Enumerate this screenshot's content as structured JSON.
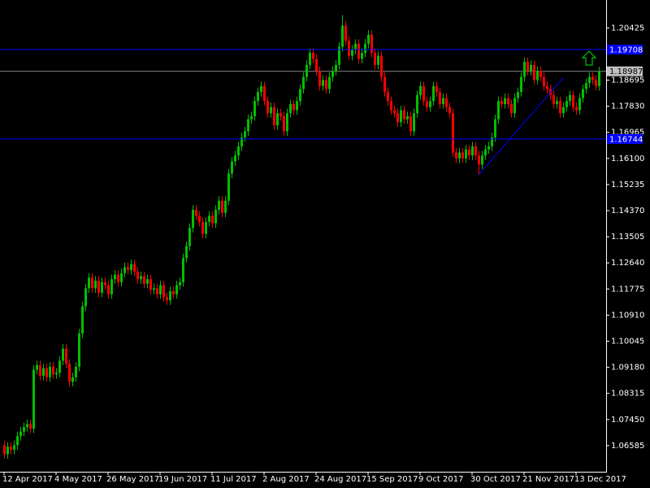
{
  "chart_data": {
    "type": "candlestick",
    "categories": [
      "12 Apr 2017",
      null,
      null,
      null,
      null,
      null,
      null,
      null,
      null,
      null,
      null,
      null,
      null,
      null,
      null,
      null,
      "4 May 2017",
      null,
      null,
      null,
      null,
      null,
      null,
      null,
      null,
      null,
      null,
      null,
      null,
      null,
      null,
      null,
      "26 May 2017",
      null,
      null,
      null,
      null,
      null,
      null,
      null,
      null,
      null,
      null,
      null,
      null,
      null,
      null,
      null,
      "19 Jun 2017",
      null,
      null,
      null,
      null,
      null,
      null,
      null,
      null,
      null,
      null,
      null,
      null,
      null,
      null,
      null,
      "11 Jul 2017",
      null,
      null,
      null,
      null,
      null,
      null,
      null,
      null,
      null,
      null,
      null,
      null,
      null,
      null,
      null,
      "2 Aug 2017",
      null,
      null,
      null,
      null,
      null,
      null,
      null,
      null,
      null,
      null,
      null,
      null,
      null,
      null,
      null,
      "24 Aug 2017",
      null,
      null,
      null,
      null,
      null,
      null,
      null,
      null,
      null,
      null,
      null,
      null,
      null,
      null,
      null,
      "15 Sep 2017",
      null,
      null,
      null,
      null,
      null,
      null,
      null,
      null,
      null,
      null,
      null,
      null,
      null,
      null,
      null,
      "9 Oct 2017",
      null,
      null,
      null,
      null,
      null,
      null,
      null,
      null,
      null,
      null,
      null,
      null,
      null,
      null,
      null,
      "30 Oct 2017",
      null,
      null,
      null,
      null,
      null,
      null,
      null,
      null,
      null,
      null,
      null,
      null,
      null,
      null,
      null,
      "21 Nov 2017",
      null,
      null,
      null,
      null,
      null,
      null,
      null,
      null,
      null,
      null,
      null,
      null,
      null,
      null,
      null,
      "13 Dec 2017",
      null,
      null,
      null,
      null,
      null,
      null,
      null
    ],
    "open": [
      1.066,
      1.063,
      1.0655,
      1.0645,
      1.066,
      1.069,
      1.0705,
      1.072,
      1.073,
      1.0715,
      1.091,
      1.0925,
      1.089,
      1.0915,
      1.0885,
      1.092,
      1.0895,
      1.09,
      1.094,
      1.098,
      1.093,
      1.087,
      1.0885,
      1.092,
      1.103,
      1.112,
      1.118,
      1.1215,
      1.118,
      1.1205,
      1.1165,
      1.12,
      1.119,
      1.116,
      1.121,
      1.1225,
      1.12,
      1.123,
      1.125,
      1.124,
      1.126,
      1.1235,
      1.121,
      1.122,
      1.1195,
      1.121,
      1.1175,
      1.118,
      1.116,
      1.119,
      1.115,
      1.114,
      1.117,
      1.116,
      1.119,
      1.12,
      1.128,
      1.132,
      1.138,
      1.144,
      1.142,
      1.14,
      1.136,
      1.14,
      1.142,
      1.1395,
      1.144,
      1.147,
      1.143,
      1.147,
      1.156,
      1.16,
      1.162,
      1.165,
      1.168,
      1.17,
      1.174,
      1.175,
      1.18,
      1.183,
      1.185,
      1.18,
      1.176,
      1.178,
      1.172,
      1.176,
      1.175,
      1.17,
      1.176,
      1.179,
      1.177,
      1.18,
      1.184,
      1.188,
      1.192,
      1.196,
      1.194,
      1.19,
      1.185,
      1.187,
      1.184,
      1.188,
      1.19,
      1.192,
      1.198,
      1.205,
      1.2,
      1.195,
      1.197,
      1.199,
      1.194,
      1.196,
      1.199,
      1.202,
      1.196,
      1.192,
      1.195,
      1.188,
      1.183,
      1.18,
      1.177,
      1.176,
      1.173,
      1.177,
      1.174,
      1.175,
      1.17,
      1.176,
      1.182,
      1.185,
      1.18,
      1.178,
      1.18,
      1.185,
      1.183,
      1.179,
      1.181,
      1.178,
      1.176,
      1.163,
      1.161,
      1.163,
      1.161,
      1.164,
      1.162,
      1.165,
      1.162,
      1.159,
      1.162,
      1.164,
      1.165,
      1.168,
      1.174,
      1.18,
      1.179,
      1.181,
      1.179,
      1.176,
      1.181,
      1.183,
      1.188,
      1.193,
      1.19,
      1.192,
      1.187,
      1.19,
      1.188,
      1.185,
      1.184,
      1.182,
      1.179,
      1.18,
      1.176,
      1.178,
      1.18,
      1.182,
      1.178,
      1.177,
      1.181,
      1.184,
      1.186,
      1.188,
      1.187,
      1.185
    ],
    "high": [
      1.0675,
      1.067,
      1.067,
      1.0675,
      1.0705,
      1.072,
      1.0735,
      1.0745,
      1.0745,
      1.0925,
      1.094,
      1.094,
      1.093,
      1.093,
      1.0935,
      1.0935,
      1.0915,
      1.0955,
      1.0995,
      1.0995,
      1.0945,
      1.09,
      1.0935,
      1.1045,
      1.1135,
      1.1195,
      1.123,
      1.123,
      1.122,
      1.122,
      1.1215,
      1.1215,
      1.1205,
      1.1225,
      1.124,
      1.124,
      1.1245,
      1.1265,
      1.1265,
      1.1275,
      1.1275,
      1.125,
      1.1235,
      1.1235,
      1.1225,
      1.1225,
      1.1195,
      1.1195,
      1.1205,
      1.1205,
      1.1165,
      1.1185,
      1.1185,
      1.1205,
      1.1215,
      1.1295,
      1.1335,
      1.1395,
      1.1455,
      1.1455,
      1.1435,
      1.1415,
      1.1415,
      1.1435,
      1.1435,
      1.1455,
      1.1485,
      1.1485,
      1.1485,
      1.1575,
      1.1615,
      1.1635,
      1.1665,
      1.1695,
      1.1715,
      1.1755,
      1.1765,
      1.1815,
      1.1845,
      1.1865,
      1.1865,
      1.1815,
      1.1795,
      1.1795,
      1.1775,
      1.1775,
      1.1765,
      1.1775,
      1.1805,
      1.1805,
      1.1815,
      1.1855,
      1.1895,
      1.1935,
      1.1975,
      1.1975,
      1.1955,
      1.1915,
      1.1885,
      1.1885,
      1.1895,
      1.1915,
      1.1935,
      1.1995,
      1.2085,
      1.2065,
      1.2015,
      1.1985,
      1.2005,
      1.2005,
      1.1975,
      1.2005,
      1.2035,
      1.2035,
      1.1975,
      1.1965,
      1.1965,
      1.1895,
      1.1845,
      1.1815,
      1.1785,
      1.1775,
      1.1785,
      1.1785,
      1.1765,
      1.1765,
      1.1775,
      1.1835,
      1.1865,
      1.1865,
      1.1815,
      1.1815,
      1.1865,
      1.1865,
      1.1845,
      1.1825,
      1.1825,
      1.1795,
      1.1775,
      1.1645,
      1.1645,
      1.1645,
      1.1655,
      1.1655,
      1.1665,
      1.1665,
      1.1635,
      1.1635,
      1.1655,
      1.1665,
      1.1695,
      1.1755,
      1.1815,
      1.1815,
      1.1825,
      1.1825,
      1.1805,
      1.1825,
      1.1845,
      1.1895,
      1.1945,
      1.1945,
      1.1935,
      1.1935,
      1.1915,
      1.1915,
      1.1895,
      1.1865,
      1.1855,
      1.1835,
      1.1815,
      1.1815,
      1.1795,
      1.1815,
      1.1835,
      1.1835,
      1.1795,
      1.1825,
      1.1855,
      1.1875,
      1.1895,
      1.1895,
      1.1885,
      1.1914
    ],
    "low": [
      1.0615,
      1.0615,
      1.063,
      1.063,
      1.0645,
      1.0675,
      1.069,
      1.0705,
      1.07,
      1.07,
      1.0895,
      1.0875,
      1.0875,
      1.087,
      1.087,
      1.088,
      1.088,
      1.0885,
      1.0925,
      1.0915,
      1.0855,
      1.0855,
      1.087,
      1.0905,
      1.1015,
      1.1105,
      1.1165,
      1.1165,
      1.1165,
      1.115,
      1.115,
      1.1175,
      1.1145,
      1.1145,
      1.1195,
      1.1185,
      1.1185,
      1.1215,
      1.1225,
      1.1225,
      1.122,
      1.1195,
      1.1195,
      1.118,
      1.118,
      1.116,
      1.116,
      1.1145,
      1.1145,
      1.1135,
      1.1125,
      1.1125,
      1.1145,
      1.1145,
      1.1175,
      1.1185,
      1.1265,
      1.1305,
      1.1365,
      1.1405,
      1.1385,
      1.1345,
      1.1345,
      1.1385,
      1.138,
      1.138,
      1.1425,
      1.1415,
      1.1415,
      1.1455,
      1.1545,
      1.1585,
      1.1605,
      1.1635,
      1.1665,
      1.1685,
      1.1725,
      1.1735,
      1.1785,
      1.1815,
      1.1785,
      1.1745,
      1.1745,
      1.1705,
      1.1705,
      1.1735,
      1.1685,
      1.1685,
      1.1745,
      1.1755,
      1.1755,
      1.1785,
      1.1825,
      1.1865,
      1.1905,
      1.1925,
      1.1885,
      1.1835,
      1.1835,
      1.1825,
      1.1825,
      1.1865,
      1.1885,
      1.1905,
      1.1965,
      1.1985,
      1.1935,
      1.1935,
      1.1955,
      1.1925,
      1.1925,
      1.1945,
      1.1975,
      1.1945,
      1.1905,
      1.1905,
      1.1865,
      1.1815,
      1.1785,
      1.1755,
      1.1745,
      1.1715,
      1.1715,
      1.1725,
      1.1725,
      1.1685,
      1.1685,
      1.1745,
      1.1805,
      1.1785,
      1.1765,
      1.1765,
      1.1785,
      1.1815,
      1.1775,
      1.1775,
      1.1765,
      1.1745,
      1.1615,
      1.1595,
      1.1595,
      1.1595,
      1.1595,
      1.1605,
      1.1605,
      1.1605,
      1.1555,
      1.1575,
      1.1605,
      1.1625,
      1.1635,
      1.1665,
      1.1725,
      1.1775,
      1.1775,
      1.1775,
      1.1745,
      1.1745,
      1.1795,
      1.1815,
      1.1865,
      1.1885,
      1.1885,
      1.1855,
      1.1855,
      1.1865,
      1.1835,
      1.1825,
      1.1805,
      1.1775,
      1.1775,
      1.1745,
      1.1745,
      1.1765,
      1.1785,
      1.1765,
      1.1755,
      1.1755,
      1.1795,
      1.1825,
      1.1845,
      1.1855,
      1.1835,
      1.1835
    ],
    "close": [
      1.063,
      1.0655,
      1.0645,
      1.066,
      1.069,
      1.0705,
      1.072,
      1.073,
      1.0715,
      1.091,
      1.0925,
      1.089,
      1.0915,
      1.0885,
      1.092,
      1.0895,
      1.09,
      1.094,
      1.098,
      1.093,
      1.087,
      1.0885,
      1.092,
      1.103,
      1.112,
      1.118,
      1.1215,
      1.118,
      1.1205,
      1.1165,
      1.12,
      1.119,
      1.116,
      1.121,
      1.1225,
      1.12,
      1.123,
      1.125,
      1.124,
      1.126,
      1.1235,
      1.121,
      1.122,
      1.1195,
      1.121,
      1.1175,
      1.118,
      1.116,
      1.119,
      1.115,
      1.114,
      1.117,
      1.116,
      1.119,
      1.12,
      1.128,
      1.132,
      1.138,
      1.144,
      1.142,
      1.14,
      1.136,
      1.14,
      1.142,
      1.1395,
      1.144,
      1.147,
      1.143,
      1.147,
      1.156,
      1.16,
      1.162,
      1.165,
      1.168,
      1.17,
      1.174,
      1.175,
      1.18,
      1.183,
      1.185,
      1.18,
      1.176,
      1.178,
      1.172,
      1.176,
      1.175,
      1.17,
      1.176,
      1.179,
      1.177,
      1.18,
      1.184,
      1.188,
      1.192,
      1.196,
      1.194,
      1.19,
      1.185,
      1.187,
      1.184,
      1.188,
      1.19,
      1.192,
      1.198,
      1.205,
      1.2,
      1.195,
      1.197,
      1.199,
      1.194,
      1.196,
      1.199,
      1.202,
      1.196,
      1.192,
      1.195,
      1.188,
      1.183,
      1.18,
      1.177,
      1.176,
      1.173,
      1.177,
      1.174,
      1.175,
      1.17,
      1.176,
      1.182,
      1.185,
      1.18,
      1.178,
      1.18,
      1.185,
      1.183,
      1.179,
      1.181,
      1.178,
      1.176,
      1.163,
      1.161,
      1.163,
      1.161,
      1.164,
      1.162,
      1.165,
      1.162,
      1.159,
      1.162,
      1.164,
      1.165,
      1.168,
      1.174,
      1.18,
      1.179,
      1.181,
      1.179,
      1.176,
      1.181,
      1.183,
      1.188,
      1.193,
      1.19,
      1.192,
      1.187,
      1.19,
      1.188,
      1.185,
      1.184,
      1.182,
      1.179,
      1.18,
      1.176,
      1.178,
      1.18,
      1.182,
      1.178,
      1.177,
      1.181,
      1.184,
      1.186,
      1.188,
      1.187,
      1.185,
      1.1899
    ],
    "up_color": "#00c000",
    "down_color": "#ff0000",
    "ylim": [
      1.0572,
      1.2135
    ],
    "yticks": [
      1.06585,
      {
        "value": 1.0745,
        "label": "1.07450"
      },
      1.08315,
      {
        "value": 1.0918,
        "label": "1.09180"
      },
      1.10045,
      {
        "value": 1.1091,
        "label": "1.10910"
      },
      1.11775,
      {
        "value": 1.1264,
        "label": "1.12640"
      },
      1.13505,
      {
        "value": 1.1437,
        "label": "1.14370"
      },
      1.15235,
      {
        "value": 1.161,
        "label": "1.16100"
      },
      1.16965,
      {
        "value": 1.1783,
        "label": "1.17830"
      },
      1.18695,
      1.20425
    ],
    "levels": [
      1.19708,
      1.16744
    ],
    "level_color": "#0000ff",
    "last_price": 1.18987,
    "trendline": {
      "from": [
        146,
        1.1555
      ],
      "to": [
        172,
        1.1877
      ],
      "color": "#0000ff"
    }
  }
}
